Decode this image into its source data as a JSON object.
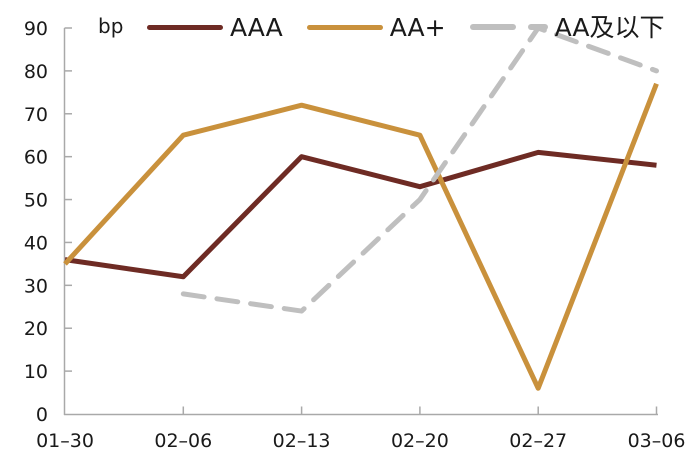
{
  "unit_label": "bp",
  "colors": {
    "series_aaa": "#6e2b24",
    "series_aa_plus": "#c9913c",
    "series_aa_below": "#bfbfbf",
    "axis": "#a9a9a9",
    "text": "#1a1a1a",
    "background": "#ffffff"
  },
  "legend": {
    "items": [
      {
        "label": "AAA"
      },
      {
        "label": "AA+"
      },
      {
        "label": "AA及以下"
      }
    ]
  },
  "chart_data": {
    "type": "line",
    "title": "",
    "xlabel": "",
    "ylabel": "bp",
    "categories": [
      "01–30",
      "02–06",
      "02–13",
      "02–20",
      "02–27",
      "03–06"
    ],
    "series": [
      {
        "name": "AAA",
        "style": "solid",
        "color": "#6e2b24",
        "values": [
          36,
          32,
          60,
          53,
          61,
          58
        ]
      },
      {
        "name": "AA+",
        "style": "solid",
        "color": "#c9913c",
        "values": [
          35,
          65,
          72,
          65,
          6,
          77
        ]
      },
      {
        "name": "AA及以下",
        "style": "dashed",
        "color": "#bfbfbf",
        "values": [
          null,
          28,
          24,
          50,
          90,
          80
        ]
      }
    ],
    "ylim": [
      0,
      90
    ],
    "yticks": [
      0,
      10,
      20,
      30,
      40,
      50,
      60,
      70,
      80,
      90
    ],
    "grid": false,
    "legend_position": "top",
    "tick_direction": "in"
  }
}
